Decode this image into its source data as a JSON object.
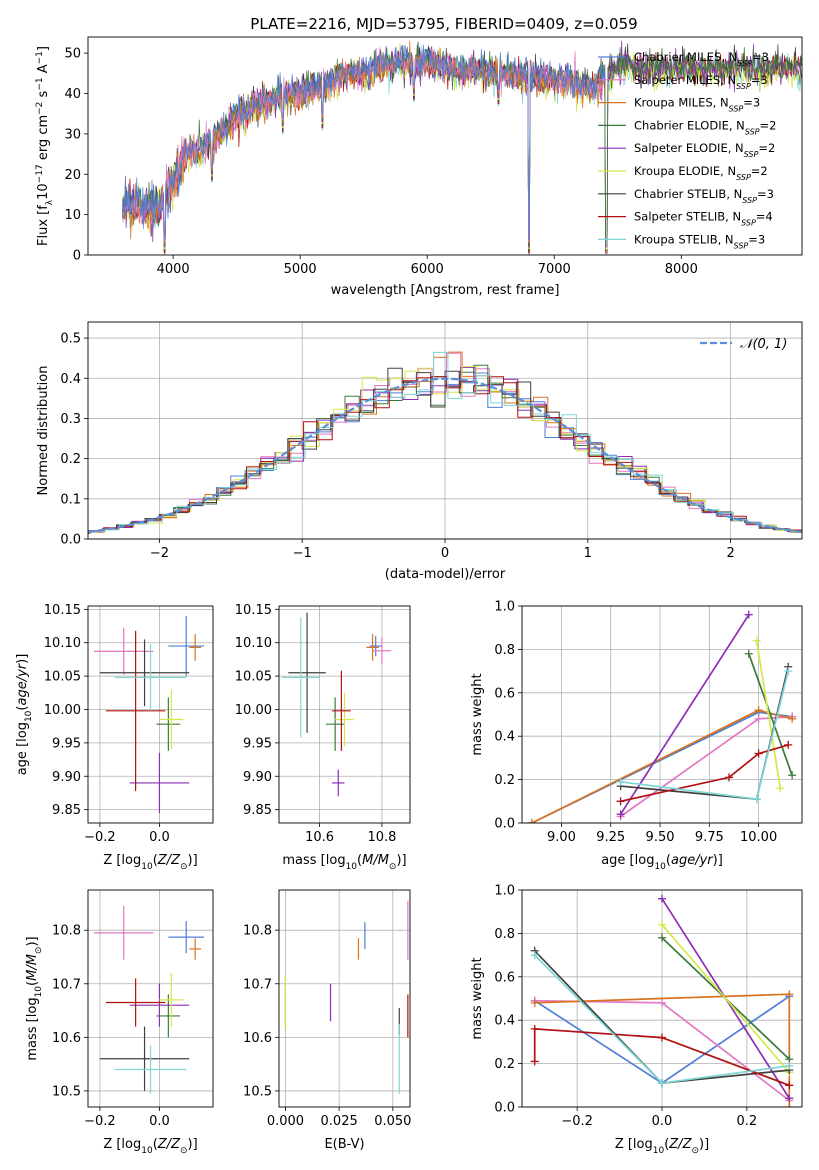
{
  "figure": {
    "title": "PLATE=2216, MJD=53795, FIBERID=0409, z=0.059"
  },
  "colors": {
    "Chabrier MILES": "#4f7fd6",
    "Salpeter MILES": "#e377c2",
    "Kroupa MILES": "#d9731f",
    "Chabrier ELODIE": "#3c7a3c",
    "Salpeter ELODIE": "#8c2fb5",
    "Kroupa ELODIE": "#d4e84a",
    "Chabrier STELIB": "#404040",
    "Salpeter STELIB": "#b01010",
    "Kroupa STELIB": "#7fd6d6"
  },
  "chart_data": [
    {
      "id": "spectrum",
      "type": "line",
      "xlabel": "wavelength [Angstrom, rest frame]",
      "ylabel": "Flux [f_λ10^-17 erg cm^-2 s^-1 A^-1]",
      "xlim": [
        3330,
        8950
      ],
      "ylim": [
        0,
        54
      ],
      "xticks": [
        4000,
        5000,
        6000,
        7000,
        8000
      ],
      "yticks": [
        0,
        10,
        20,
        30,
        40,
        50
      ],
      "grid": false,
      "legend": "upper right",
      "legend_entries": [
        "Chabrier MILES, N_SSP=3",
        "Salpeter MILES, N_SSP=3",
        "Kroupa MILES, N_SSP=3",
        "Chabrier ELODIE, N_SSP=2",
        "Salpeter ELODIE, N_SSP=2",
        "Kroupa ELODIE, N_SSP=2",
        "Chabrier STELIB, N_SSP=3",
        "Salpeter STELIB, N_SSP=4",
        "Kroupa STELIB, N_SSP=3"
      ],
      "continuum_x": [
        3600,
        3700,
        3800,
        3900,
        4000,
        4100,
        4200,
        4300,
        4400,
        4500,
        4600,
        4700,
        4800,
        4900,
        5000,
        5100,
        5200,
        5300,
        5400,
        5500,
        5600,
        5700,
        5800,
        5900,
        6000,
        6100,
        6200,
        6300,
        6400,
        6500,
        6600,
        6700,
        6800,
        6900,
        7000,
        7100,
        7200,
        7300,
        7400,
        7500,
        7600,
        7700,
        7800,
        7900,
        8000,
        8100,
        8200,
        8300,
        8400,
        8500,
        8600,
        8700,
        8800,
        8900
      ],
      "continuum_y": [
        12,
        13,
        12,
        12,
        18,
        25,
        26,
        28,
        31,
        34,
        36,
        37,
        39,
        40,
        40,
        41,
        42,
        44,
        45,
        45,
        46,
        47,
        48,
        47,
        48,
        47,
        46,
        45,
        46,
        45,
        45,
        45,
        44,
        44,
        43,
        43,
        42,
        41,
        44,
        46,
        47,
        46,
        46,
        46,
        46,
        46,
        46,
        46,
        46,
        46,
        46,
        46,
        46,
        46
      ],
      "dips": [
        {
          "x": 3933,
          "y": 0
        },
        {
          "x": 4305,
          "y": 18
        },
        {
          "x": 4861,
          "y": 30
        },
        {
          "x": 5175,
          "y": 31
        },
        {
          "x": 5893,
          "y": 38
        },
        {
          "x": 6563,
          "y": 37
        },
        {
          "x": 6800,
          "y": 0
        },
        {
          "x": 7410,
          "y": 0
        }
      ]
    },
    {
      "id": "residuals",
      "type": "step",
      "xlabel": "(data-model)/error",
      "ylabel": "Normed distribution",
      "xlim": [
        -2.5,
        2.5
      ],
      "ylim": [
        0,
        0.54
      ],
      "xticks": [
        -2,
        -1,
        0,
        1,
        2
      ],
      "yticks": [
        0.0,
        0.1,
        0.2,
        0.3,
        0.4,
        0.5
      ],
      "grid": true,
      "legend": "upper right",
      "reference_curve": {
        "name": "𝒩(0, 1)",
        "mean": 0,
        "sigma": 1
      }
    },
    {
      "id": "age-vs-Z",
      "type": "errorbar",
      "xlabel": "Z [log10(Z/Z⊙)]",
      "ylabel": "age  [log10(age/yr)]",
      "xlim": [
        -0.24,
        0.18
      ],
      "ylim": [
        9.83,
        10.155
      ],
      "xticks": [
        -0.2,
        0.0
      ],
      "yticks": [
        9.85,
        9.9,
        9.95,
        10.0,
        10.05,
        10.1,
        10.15
      ],
      "grid": true,
      "points": [
        {
          "model": "Chabrier MILES",
          "x": 0.09,
          "xerr": 0.06,
          "y": 10.095,
          "yerr": 0.045
        },
        {
          "model": "Salpeter MILES",
          "x": -0.12,
          "xerr": 0.1,
          "y": 10.087,
          "yerr": 0.035
        },
        {
          "model": "Kroupa MILES",
          "x": 0.12,
          "xerr": 0.02,
          "y": 10.093,
          "yerr": 0.02
        },
        {
          "model": "Chabrier ELODIE",
          "x": 0.03,
          "xerr": 0.04,
          "y": 9.978,
          "yerr": 0.04
        },
        {
          "model": "Salpeter ELODIE",
          "x": 0.0,
          "xerr": 0.1,
          "y": 9.89,
          "yerr": 0.045
        },
        {
          "model": "Kroupa ELODIE",
          "x": 0.04,
          "xerr": 0.04,
          "y": 9.985,
          "yerr": 0.045
        },
        {
          "model": "Chabrier STELIB",
          "x": -0.05,
          "xerr": 0.15,
          "y": 10.055,
          "yerr": 0.05
        },
        {
          "model": "Salpeter STELIB",
          "x": -0.08,
          "xerr": 0.1,
          "y": 9.998,
          "yerr": 0.12
        },
        {
          "model": "Kroupa STELIB",
          "x": -0.03,
          "xerr": 0.12,
          "y": 10.048,
          "yerr": 0.05
        }
      ]
    },
    {
      "id": "age-vs-mass",
      "type": "errorbar",
      "xlabel": "mass [log10(M/M⊙)]",
      "ylabel": "",
      "xlim": [
        10.47,
        10.89
      ],
      "ylim": [
        9.83,
        10.155
      ],
      "xticks": [
        10.6,
        10.8
      ],
      "yticks": [
        9.85,
        9.9,
        9.95,
        10.0,
        10.05,
        10.1,
        10.15
      ],
      "grid": true,
      "points": [
        {
          "model": "Chabrier MILES",
          "x": 10.78,
          "xerr": 0.02,
          "y": 10.095,
          "yerr": 0.015
        },
        {
          "model": "Salpeter MILES",
          "x": 10.8,
          "xerr": 0.03,
          "y": 10.088,
          "yerr": 0.02
        },
        {
          "model": "Kroupa MILES",
          "x": 10.77,
          "xerr": 0.02,
          "y": 10.093,
          "yerr": 0.02
        },
        {
          "model": "Chabrier ELODIE",
          "x": 10.65,
          "xerr": 0.03,
          "y": 9.978,
          "yerr": 0.04
        },
        {
          "model": "Salpeter ELODIE",
          "x": 10.66,
          "xerr": 0.02,
          "y": 9.89,
          "yerr": 0.02
        },
        {
          "model": "Kroupa ELODIE",
          "x": 10.68,
          "xerr": 0.03,
          "y": 9.985,
          "yerr": 0.04
        },
        {
          "model": "Chabrier STELIB",
          "x": 10.56,
          "xerr": 0.06,
          "y": 10.055,
          "yerr": 0.09
        },
        {
          "model": "Salpeter STELIB",
          "x": 10.67,
          "xerr": 0.03,
          "y": 9.998,
          "yerr": 0.06
        },
        {
          "model": "Kroupa STELIB",
          "x": 10.54,
          "xerr": 0.06,
          "y": 10.048,
          "yerr": 0.09
        }
      ]
    },
    {
      "id": "weight-vs-age",
      "type": "line",
      "xlabel": "age  [log10(age/yr)]",
      "ylabel": "mass weight",
      "xlim": [
        8.8,
        10.22
      ],
      "ylim": [
        0,
        1.0
      ],
      "xticks": [
        9.0,
        9.25,
        9.5,
        9.75,
        10.0
      ],
      "yticks": [
        0.0,
        0.2,
        0.4,
        0.6,
        0.8,
        1.0
      ],
      "grid": true,
      "series": [
        {
          "model": "Chabrier MILES",
          "x": [
            8.85,
            10.0,
            10.17
          ],
          "y": [
            0.0,
            0.51,
            0.49
          ]
        },
        {
          "model": "Salpeter MILES",
          "x": [
            9.3,
            10.0,
            10.17
          ],
          "y": [
            0.03,
            0.48,
            0.49
          ]
        },
        {
          "model": "Kroupa MILES",
          "x": [
            8.85,
            10.0,
            10.17
          ],
          "y": [
            0.0,
            0.52,
            0.48
          ]
        },
        {
          "model": "Chabrier ELODIE",
          "x": [
            9.95,
            10.17
          ],
          "y": [
            0.78,
            0.22
          ]
        },
        {
          "model": "Salpeter ELODIE",
          "x": [
            9.3,
            9.95
          ],
          "y": [
            0.04,
            0.96
          ]
        },
        {
          "model": "Kroupa ELODIE",
          "x": [
            9.99,
            10.11
          ],
          "y": [
            0.84,
            0.16
          ]
        },
        {
          "model": "Chabrier STELIB",
          "x": [
            9.3,
            9.99,
            10.15
          ],
          "y": [
            0.17,
            0.11,
            0.72
          ]
        },
        {
          "model": "Salpeter STELIB",
          "x": [
            9.3,
            9.85,
            10.0,
            10.15
          ],
          "y": [
            0.1,
            0.21,
            0.32,
            0.36
          ]
        },
        {
          "model": "Kroupa STELIB",
          "x": [
            9.3,
            9.99,
            10.15
          ],
          "y": [
            0.19,
            0.11,
            0.7
          ]
        }
      ]
    },
    {
      "id": "mass-vs-Z",
      "type": "errorbar",
      "xlabel": "Z [log10(Z/Z⊙)]",
      "ylabel": "mass [log10(M/M⊙)]",
      "xlim": [
        -0.24,
        0.18
      ],
      "ylim": [
        10.47,
        10.875
      ],
      "xticks": [
        -0.2,
        0.0
      ],
      "yticks": [
        10.5,
        10.6,
        10.7,
        10.8
      ],
      "grid": true,
      "points": [
        {
          "model": "Chabrier MILES",
          "x": 0.09,
          "xerr": 0.06,
          "y": 10.787,
          "yerr": 0.03
        },
        {
          "model": "Salpeter MILES",
          "x": -0.12,
          "xerr": 0.1,
          "y": 10.795,
          "yerr": 0.05
        },
        {
          "model": "Kroupa MILES",
          "x": 0.12,
          "xerr": 0.02,
          "y": 10.765,
          "yerr": 0.02
        },
        {
          "model": "Chabrier ELODIE",
          "x": 0.03,
          "xerr": 0.04,
          "y": 10.64,
          "yerr": 0.04
        },
        {
          "model": "Salpeter ELODIE",
          "x": 0.0,
          "xerr": 0.1,
          "y": 10.66,
          "yerr": 0.04
        },
        {
          "model": "Kroupa ELODIE",
          "x": 0.04,
          "xerr": 0.04,
          "y": 10.67,
          "yerr": 0.05
        },
        {
          "model": "Chabrier STELIB",
          "x": -0.05,
          "xerr": 0.15,
          "y": 10.56,
          "yerr": 0.06
        },
        {
          "model": "Salpeter STELIB",
          "x": -0.08,
          "xerr": 0.1,
          "y": 10.665,
          "yerr": 0.045
        },
        {
          "model": "Kroupa STELIB",
          "x": -0.03,
          "xerr": 0.12,
          "y": 10.54,
          "yerr": 0.045
        }
      ]
    },
    {
      "id": "mass-vs-ebv",
      "type": "errorbar",
      "xlabel": "E(B-V)",
      "ylabel": "",
      "xlim": [
        -0.003,
        0.058
      ],
      "ylim": [
        10.47,
        10.875
      ],
      "xticks": [
        0.0,
        0.025,
        0.05
      ],
      "yticks": [
        10.5,
        10.6,
        10.7,
        10.8
      ],
      "grid": true,
      "points": [
        {
          "model": "Chabrier MILES",
          "x": 0.037,
          "xerr": 0,
          "y": 10.79,
          "yerr": 0.025
        },
        {
          "model": "Salpeter MILES",
          "x": 0.057,
          "xerr": 0,
          "y": 10.8,
          "yerr": 0.055
        },
        {
          "model": "Kroupa MILES",
          "x": 0.034,
          "xerr": 0,
          "y": 10.765,
          "yerr": 0.02
        },
        {
          "model": "Chabrier ELODIE",
          "x": 0.0,
          "xerr": 0,
          "y": 10.665,
          "yerr": 0.05
        },
        {
          "model": "Salpeter ELODIE",
          "x": 0.021,
          "xerr": 0,
          "y": 10.665,
          "yerr": 0.035
        },
        {
          "model": "Kroupa ELODIE",
          "x": 0.0,
          "xerr": 0,
          "y": 10.665,
          "yerr": 0.05
        },
        {
          "model": "Chabrier STELIB",
          "x": 0.053,
          "xerr": 0,
          "y": 10.63,
          "yerr": 0.025
        },
        {
          "model": "Salpeter STELIB",
          "x": 0.057,
          "xerr": 0,
          "y": 10.64,
          "yerr": 0.04
        },
        {
          "model": "Kroupa STELIB",
          "x": 0.053,
          "xerr": 0,
          "y": 10.56,
          "yerr": 0.065
        }
      ]
    },
    {
      "id": "weight-vs-Z",
      "type": "line",
      "xlabel": "Z [log10(Z/Z⊙)]",
      "ylabel": "mass weight",
      "xlim": [
        -0.33,
        0.33
      ],
      "ylim": [
        0,
        1.0
      ],
      "xticks": [
        -0.2,
        0.0,
        0.2
      ],
      "yticks": [
        0.0,
        0.2,
        0.4,
        0.6,
        0.8,
        1.0
      ],
      "grid": true,
      "series": [
        {
          "model": "Chabrier MILES",
          "x": [
            -0.3,
            0.0,
            0.3
          ],
          "y": [
            0.49,
            0.11,
            0.51
          ]
        },
        {
          "model": "Salpeter MILES",
          "x": [
            -0.3,
            0.0,
            0.3
          ],
          "y": [
            0.49,
            0.48,
            0.03
          ]
        },
        {
          "model": "Kroupa MILES",
          "x": [
            -0.3,
            0.3,
            0.3
          ],
          "y": [
            0.48,
            0.52,
            0.0
          ]
        },
        {
          "model": "Chabrier ELODIE",
          "x": [
            0.0,
            0.3
          ],
          "y": [
            0.78,
            0.22
          ]
        },
        {
          "model": "Salpeter ELODIE",
          "x": [
            0.0,
            0.3
          ],
          "y": [
            0.96,
            0.04
          ]
        },
        {
          "model": "Kroupa ELODIE",
          "x": [
            0.0,
            0.3
          ],
          "y": [
            0.84,
            0.16
          ]
        },
        {
          "model": "Chabrier STELIB",
          "x": [
            -0.3,
            0.0,
            0.3
          ],
          "y": [
            0.72,
            0.11,
            0.17
          ]
        },
        {
          "model": "Salpeter STELIB",
          "x": [
            -0.3,
            -0.3,
            0.0,
            0.3
          ],
          "y": [
            0.21,
            0.36,
            0.32,
            0.1
          ]
        },
        {
          "model": "Kroupa STELIB",
          "x": [
            -0.3,
            0.0,
            0.3
          ],
          "y": [
            0.7,
            0.11,
            0.19
          ]
        }
      ]
    }
  ]
}
